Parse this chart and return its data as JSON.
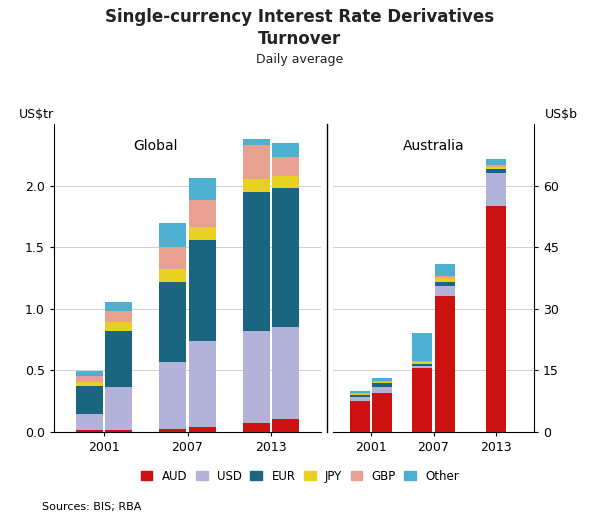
{
  "title_line1": "Single-currency Interest Rate Derivatives",
  "title_line2": "Turnover",
  "subtitle": "Daily average",
  "left_ylabel": "US$tr",
  "right_ylabel": "US$b",
  "source": "Sources: BIS; RBA",
  "global_label": "Global",
  "australia_label": "Australia",
  "colors": {
    "AUD": "#cc1111",
    "USD": "#b3b3d9",
    "EUR": "#1a6680",
    "JPY": "#e8d020",
    "GBP": "#e8a090",
    "Other": "#4db0d0"
  },
  "legend_labels": [
    "AUD",
    "USD",
    "EUR",
    "JPY",
    "GBP",
    "Other"
  ],
  "years": [
    "2001",
    "2007",
    "2013"
  ],
  "global_data": [
    [
      [
        0.01,
        0.13,
        0.23,
        0.03,
        0.05,
        0.04
      ],
      [
        0.01,
        0.35,
        0.46,
        0.07,
        0.09,
        0.07
      ]
    ],
    [
      [
        0.02,
        0.55,
        0.65,
        0.1,
        0.18,
        0.2
      ],
      [
        0.04,
        0.7,
        0.82,
        0.1,
        0.22,
        0.18
      ]
    ],
    [
      [
        0.07,
        0.75,
        1.13,
        0.1,
        0.28,
        0.05
      ],
      [
        0.1,
        0.75,
        1.13,
        0.1,
        0.15,
        0.12
      ]
    ]
  ],
  "australia_data": [
    [
      [
        7.5,
        1.0,
        0.5,
        0.3,
        0.2,
        0.5
      ],
      [
        9.5,
        1.5,
        0.8,
        0.3,
        0.3,
        0.6
      ]
    ],
    [
      [
        15.5,
        0.5,
        0.5,
        0.5,
        0.3,
        6.7
      ],
      [
        33.0,
        2.5,
        1.0,
        1.0,
        0.5,
        3.0
      ]
    ],
    [
      [
        55.0,
        8.0,
        1.0,
        0.5,
        0.5,
        1.5
      ],
      null
    ]
  ],
  "left_ylim": [
    0,
    2.5
  ],
  "left_yticks": [
    0.0,
    0.5,
    1.0,
    1.5,
    2.0
  ],
  "right_ylim": [
    0,
    75
  ],
  "right_yticks": [
    0,
    15,
    30,
    45,
    60
  ],
  "bg_color": "#ffffff",
  "grid_color": "#d0d0d0",
  "bar_width": 0.32
}
